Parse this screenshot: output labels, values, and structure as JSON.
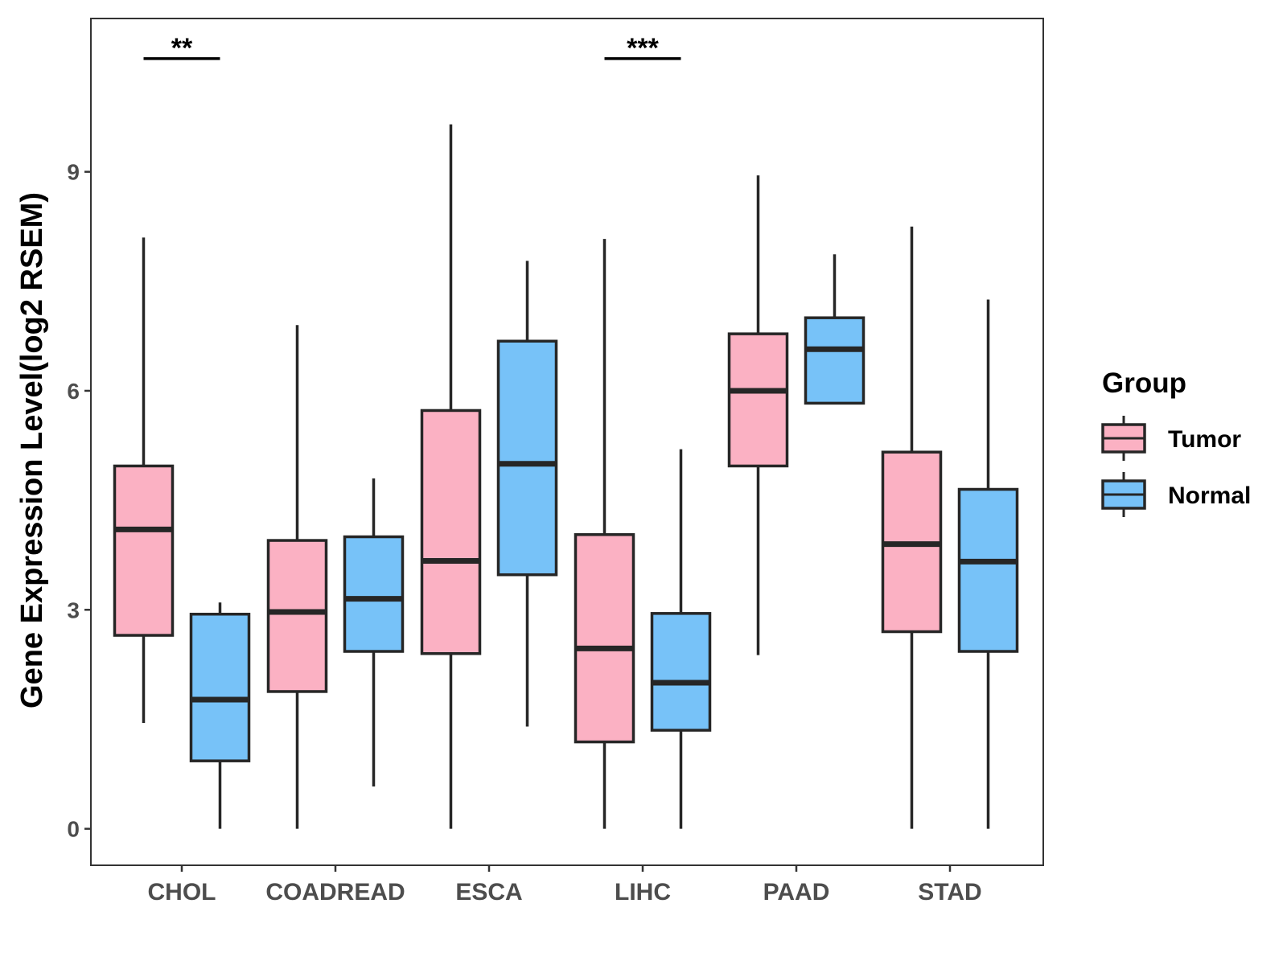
{
  "chart_data": {
    "type": "boxplot",
    "ylabel": "Gene Expression Level(log2 RSEM)",
    "xlabel": "",
    "ylim": [
      -0.5,
      11.1
    ],
    "yticks": [
      0,
      3,
      6,
      9
    ],
    "categories": [
      "CHOL",
      "COADREAD",
      "ESCA",
      "LIHC",
      "PAAD",
      "STAD"
    ],
    "series": [
      {
        "name": "Tumor",
        "color": "#FBB1C3",
        "boxes": [
          {
            "min": 1.45,
            "q1": 2.65,
            "median": 4.1,
            "q3": 4.97,
            "max": 8.1
          },
          {
            "min": 0.0,
            "q1": 1.88,
            "median": 2.97,
            "q3": 3.95,
            "max": 6.9
          },
          {
            "min": 0.0,
            "q1": 2.4,
            "median": 3.67,
            "q3": 5.73,
            "max": 9.65
          },
          {
            "min": 0.0,
            "q1": 1.19,
            "median": 2.47,
            "q3": 4.03,
            "max": 8.08
          },
          {
            "min": 2.38,
            "q1": 4.97,
            "median": 6.0,
            "q3": 6.78,
            "max": 8.95
          },
          {
            "min": 0.0,
            "q1": 2.7,
            "median": 3.9,
            "q3": 5.16,
            "max": 8.25
          }
        ]
      },
      {
        "name": "Normal",
        "color": "#77C2F8",
        "boxes": [
          {
            "min": 0.0,
            "q1": 0.93,
            "median": 1.77,
            "q3": 2.94,
            "max": 3.1
          },
          {
            "min": 0.58,
            "q1": 2.43,
            "median": 3.15,
            "q3": 4.0,
            "max": 4.8
          },
          {
            "min": 1.4,
            "q1": 3.48,
            "median": 5.0,
            "q3": 6.68,
            "max": 7.78
          },
          {
            "min": 0.0,
            "q1": 1.35,
            "median": 2.0,
            "q3": 2.95,
            "max": 5.2
          },
          {
            "min": 5.83,
            "q1": 5.83,
            "median": 6.57,
            "q3": 7.0,
            "max": 7.87
          },
          {
            "min": 0.0,
            "q1": 2.43,
            "median": 3.66,
            "q3": 4.65,
            "max": 7.25
          }
        ]
      }
    ],
    "annotations": [
      {
        "category": "CHOL",
        "label": "**",
        "y": 10.55
      },
      {
        "category": "LIHC",
        "label": "***",
        "y": 10.55
      }
    ],
    "legend": {
      "title": "Group",
      "position": "right"
    }
  }
}
